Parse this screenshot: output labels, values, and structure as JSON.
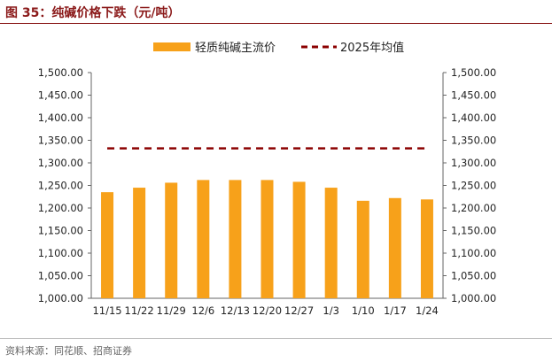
{
  "figure": {
    "title": "图 35：纯碱价格下跌（元/吨）",
    "source": "资料来源：同花顺、招商证券"
  },
  "chart_data": {
    "type": "bar",
    "categories": [
      "11/15",
      "11/22",
      "11/29",
      "12/6",
      "12/13",
      "12/20",
      "12/27",
      "1/3",
      "1/10",
      "1/17",
      "1/24"
    ],
    "series": [
      {
        "name": "轻质纯碱主流价",
        "type": "bar",
        "color": "#f7a11a",
        "values": [
          1235,
          1245,
          1256,
          1262,
          1262,
          1262,
          1258,
          1245,
          1216,
          1222,
          1219
        ]
      },
      {
        "name": "2025年均值",
        "type": "line",
        "style": "dashed",
        "color": "#8b0000",
        "values": [
          1332,
          1332,
          1332,
          1332,
          1332,
          1332,
          1332,
          1332,
          1332,
          1332,
          1332
        ]
      }
    ],
    "ylim": [
      1000,
      1500
    ],
    "yticks": [
      "1,000.00",
      "1,050.00",
      "1,100.00",
      "1,150.00",
      "1,200.00",
      "1,250.00",
      "1,300.00",
      "1,350.00",
      "1,400.00",
      "1,450.00",
      "1,500.00"
    ],
    "y2lim": [
      1000,
      1500
    ],
    "y2ticks": [
      "1,000.00",
      "1,050.00",
      "1,100.00",
      "1,150.00",
      "1,200.00",
      "1,250.00",
      "1,300.00",
      "1,350.00",
      "1,400.00",
      "1,450.00",
      "1,500.00"
    ],
    "legend_position": "top",
    "grid": false
  }
}
